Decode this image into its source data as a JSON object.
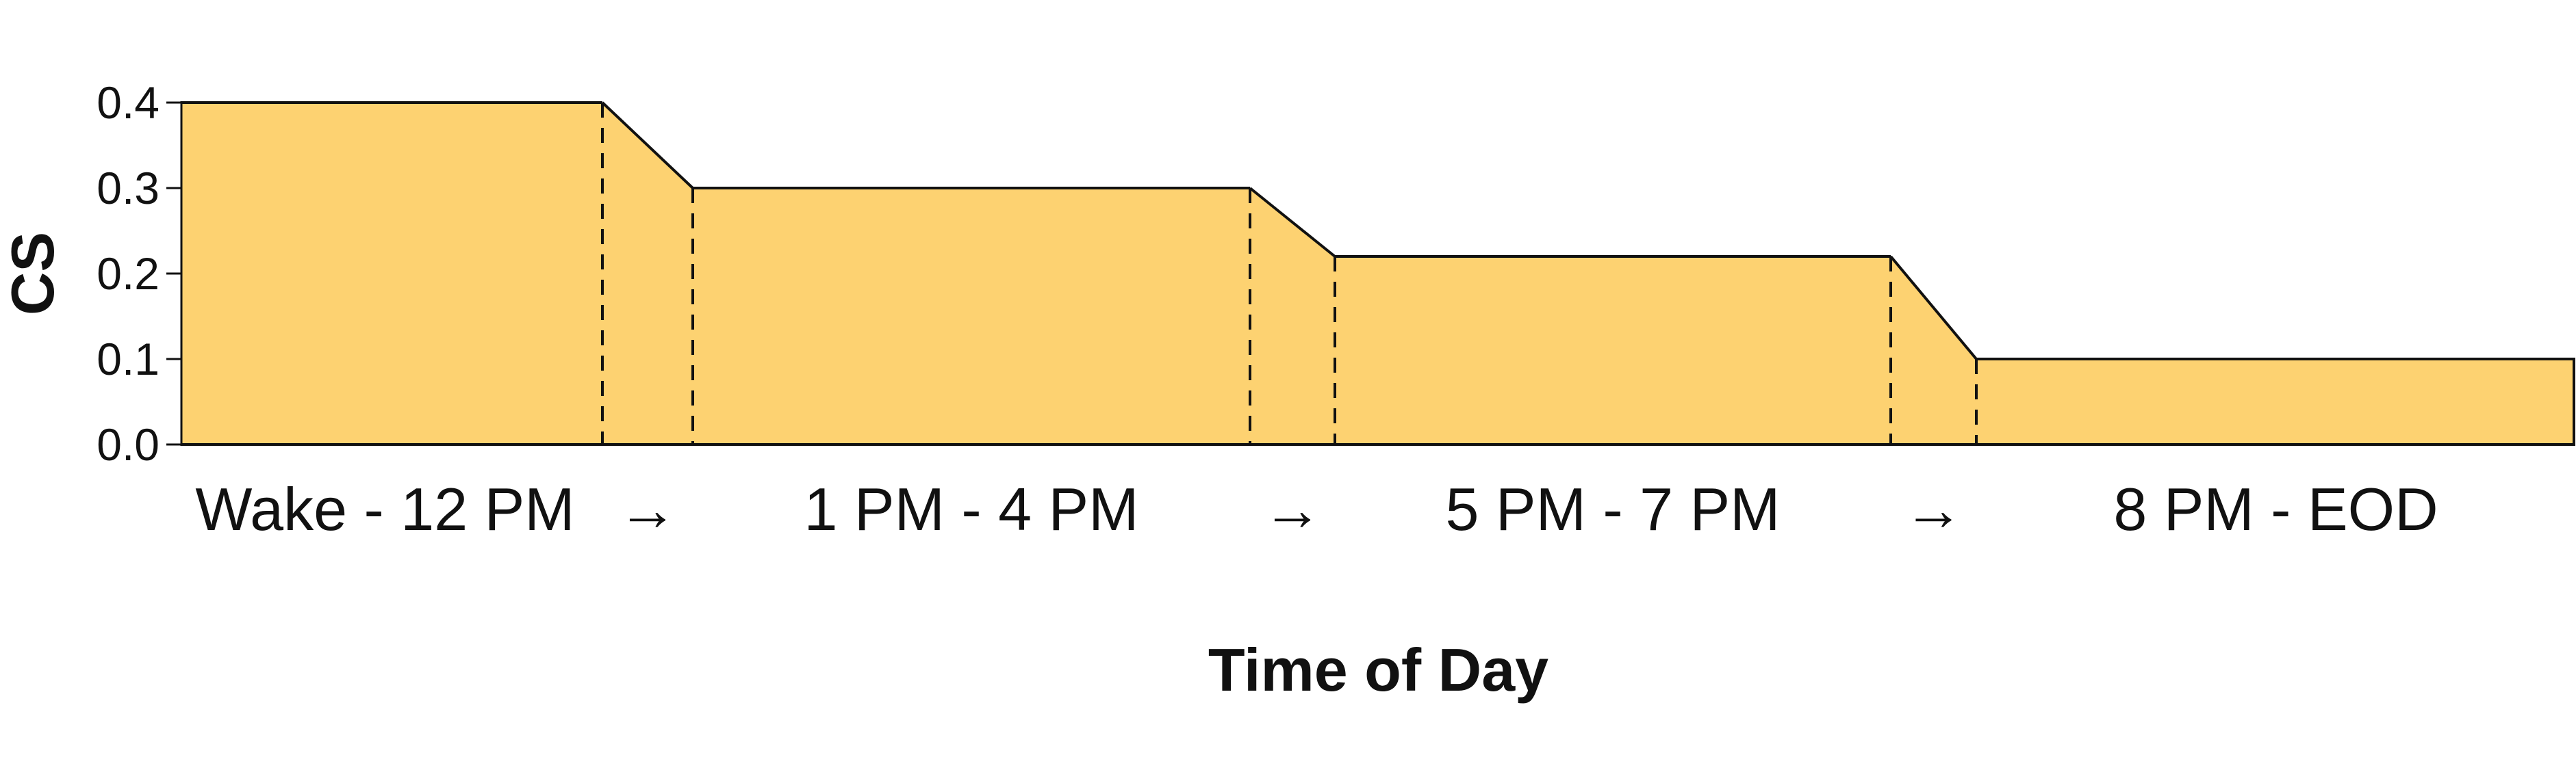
{
  "chart_data": {
    "type": "area",
    "xlabel": "Time of Day",
    "ylabel": "CS",
    "ylim": [
      0,
      0.4
    ],
    "yticks": [
      "0.0",
      "0.1",
      "0.2",
      "0.3",
      "0.4"
    ],
    "categories": [
      "Wake - 12 PM",
      "1 PM - 4 PM",
      "5 PM - 7 PM",
      "8 PM - EOD"
    ],
    "values": [
      0.4,
      0.3,
      0.22,
      0.1
    ],
    "transition_label": "→",
    "fill_color": "#FDD271",
    "line_color": "#111111",
    "grid": false,
    "legend": "none",
    "transitions_dashed": true
  }
}
